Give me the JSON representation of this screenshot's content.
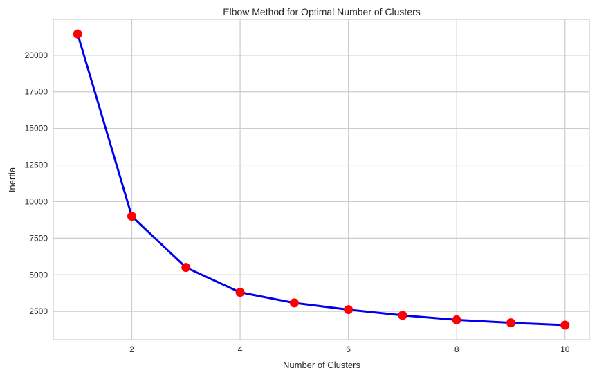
{
  "chart_data": {
    "type": "line",
    "title": "Elbow Method for Optimal Number of Clusters",
    "xlabel": "Number of Clusters",
    "ylabel": "Inertia",
    "x": [
      1,
      2,
      3,
      4,
      5,
      6,
      7,
      8,
      9,
      10
    ],
    "series": [
      {
        "values": [
          21450,
          9000,
          5500,
          3800,
          3080,
          2620,
          2230,
          1920,
          1720,
          1560
        ],
        "line_color": "#0000ee",
        "marker_color": "#ff0000",
        "marker": "circle"
      }
    ],
    "xlim": [
      0.55,
      10.45
    ],
    "ylim": [
      570,
      22450
    ],
    "xticks": [
      2,
      4,
      6,
      8,
      10
    ],
    "yticks": [
      2500,
      5000,
      7500,
      10000,
      12500,
      15000,
      17500,
      20000
    ],
    "grid": true,
    "background": "#ffffff",
    "grid_color": "#cccccc"
  }
}
